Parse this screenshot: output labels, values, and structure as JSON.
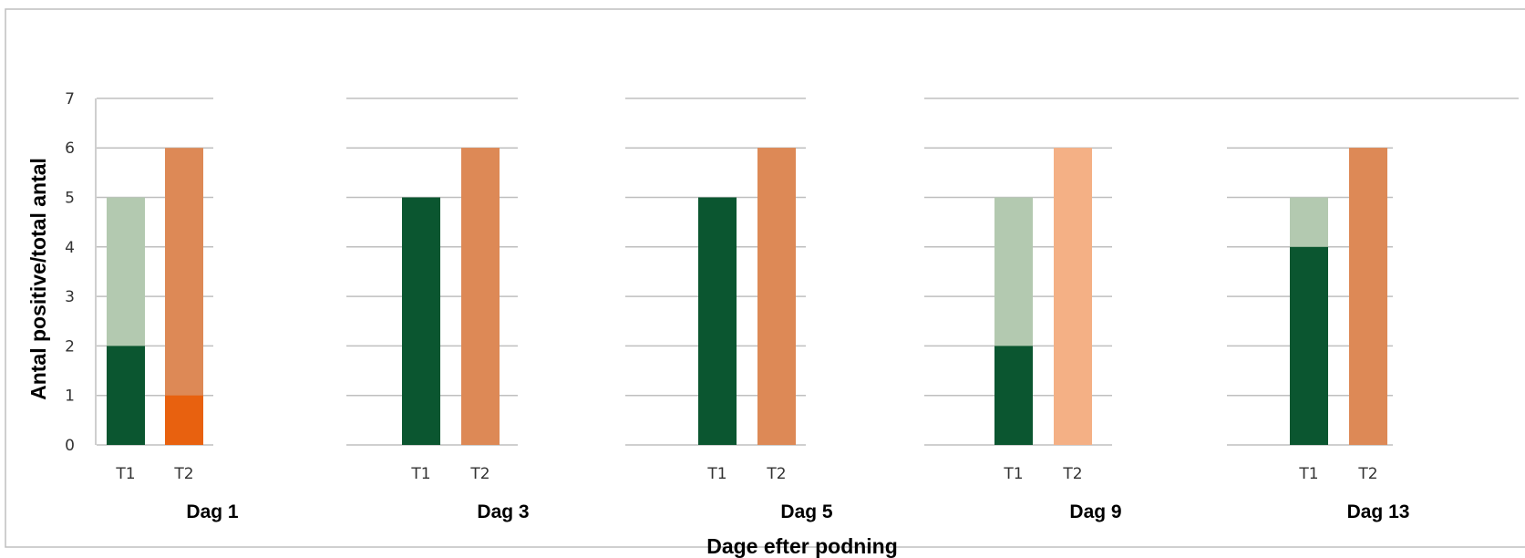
{
  "chart_data": {
    "type": "bar",
    "stacked": true,
    "xlabel": "Dage efter podning",
    "ylabel": "Antal positive/total antal",
    "ylim": [
      0,
      7
    ],
    "yticks": [
      0,
      1,
      2,
      3,
      4,
      5,
      6,
      7
    ],
    "grid": true,
    "categories": [
      "T1",
      "T2"
    ],
    "groups": [
      {
        "label": "Dag 1",
        "bars": [
          {
            "category": "T1",
            "positive": 2,
            "total": 5,
            "positive_color": "#0b5630",
            "total_color": "#b3c9b0"
          },
          {
            "category": "T2",
            "positive": 1,
            "total": 6,
            "positive_color": "#e8610f",
            "total_color": "#dd8956"
          }
        ]
      },
      {
        "label": "Dag 3",
        "bars": [
          {
            "category": "T1",
            "positive": 5,
            "total": 5,
            "positive_color": "#0b5630",
            "total_color": "#b3c9b0"
          },
          {
            "category": "T2",
            "positive": 6,
            "total": 6,
            "positive_color": "#dd8956",
            "total_color": "#dd8956"
          }
        ]
      },
      {
        "label": "Dag 5",
        "bars": [
          {
            "category": "T1",
            "positive": 5,
            "total": 5,
            "positive_color": "#0b5630",
            "total_color": "#b3c9b0"
          },
          {
            "category": "T2",
            "positive": 6,
            "total": 6,
            "positive_color": "#dd8956",
            "total_color": "#dd8956"
          }
        ]
      },
      {
        "label": "Dag 9",
        "bars": [
          {
            "category": "T1",
            "positive": 2,
            "total": 5,
            "positive_color": "#0b5630",
            "total_color": "#b3c9b0"
          },
          {
            "category": "T2",
            "positive": 6,
            "total": 6,
            "positive_color": "#f4b085",
            "total_color": "#f4b085"
          }
        ]
      },
      {
        "label": "Dag 13",
        "bars": [
          {
            "category": "T1",
            "positive": 4,
            "total": 5,
            "positive_color": "#0b5630",
            "total_color": "#b3c9b0"
          },
          {
            "category": "T2",
            "positive": 6,
            "total": 6,
            "positive_color": "#dd8956",
            "total_color": "#dd8956"
          }
        ]
      }
    ]
  }
}
